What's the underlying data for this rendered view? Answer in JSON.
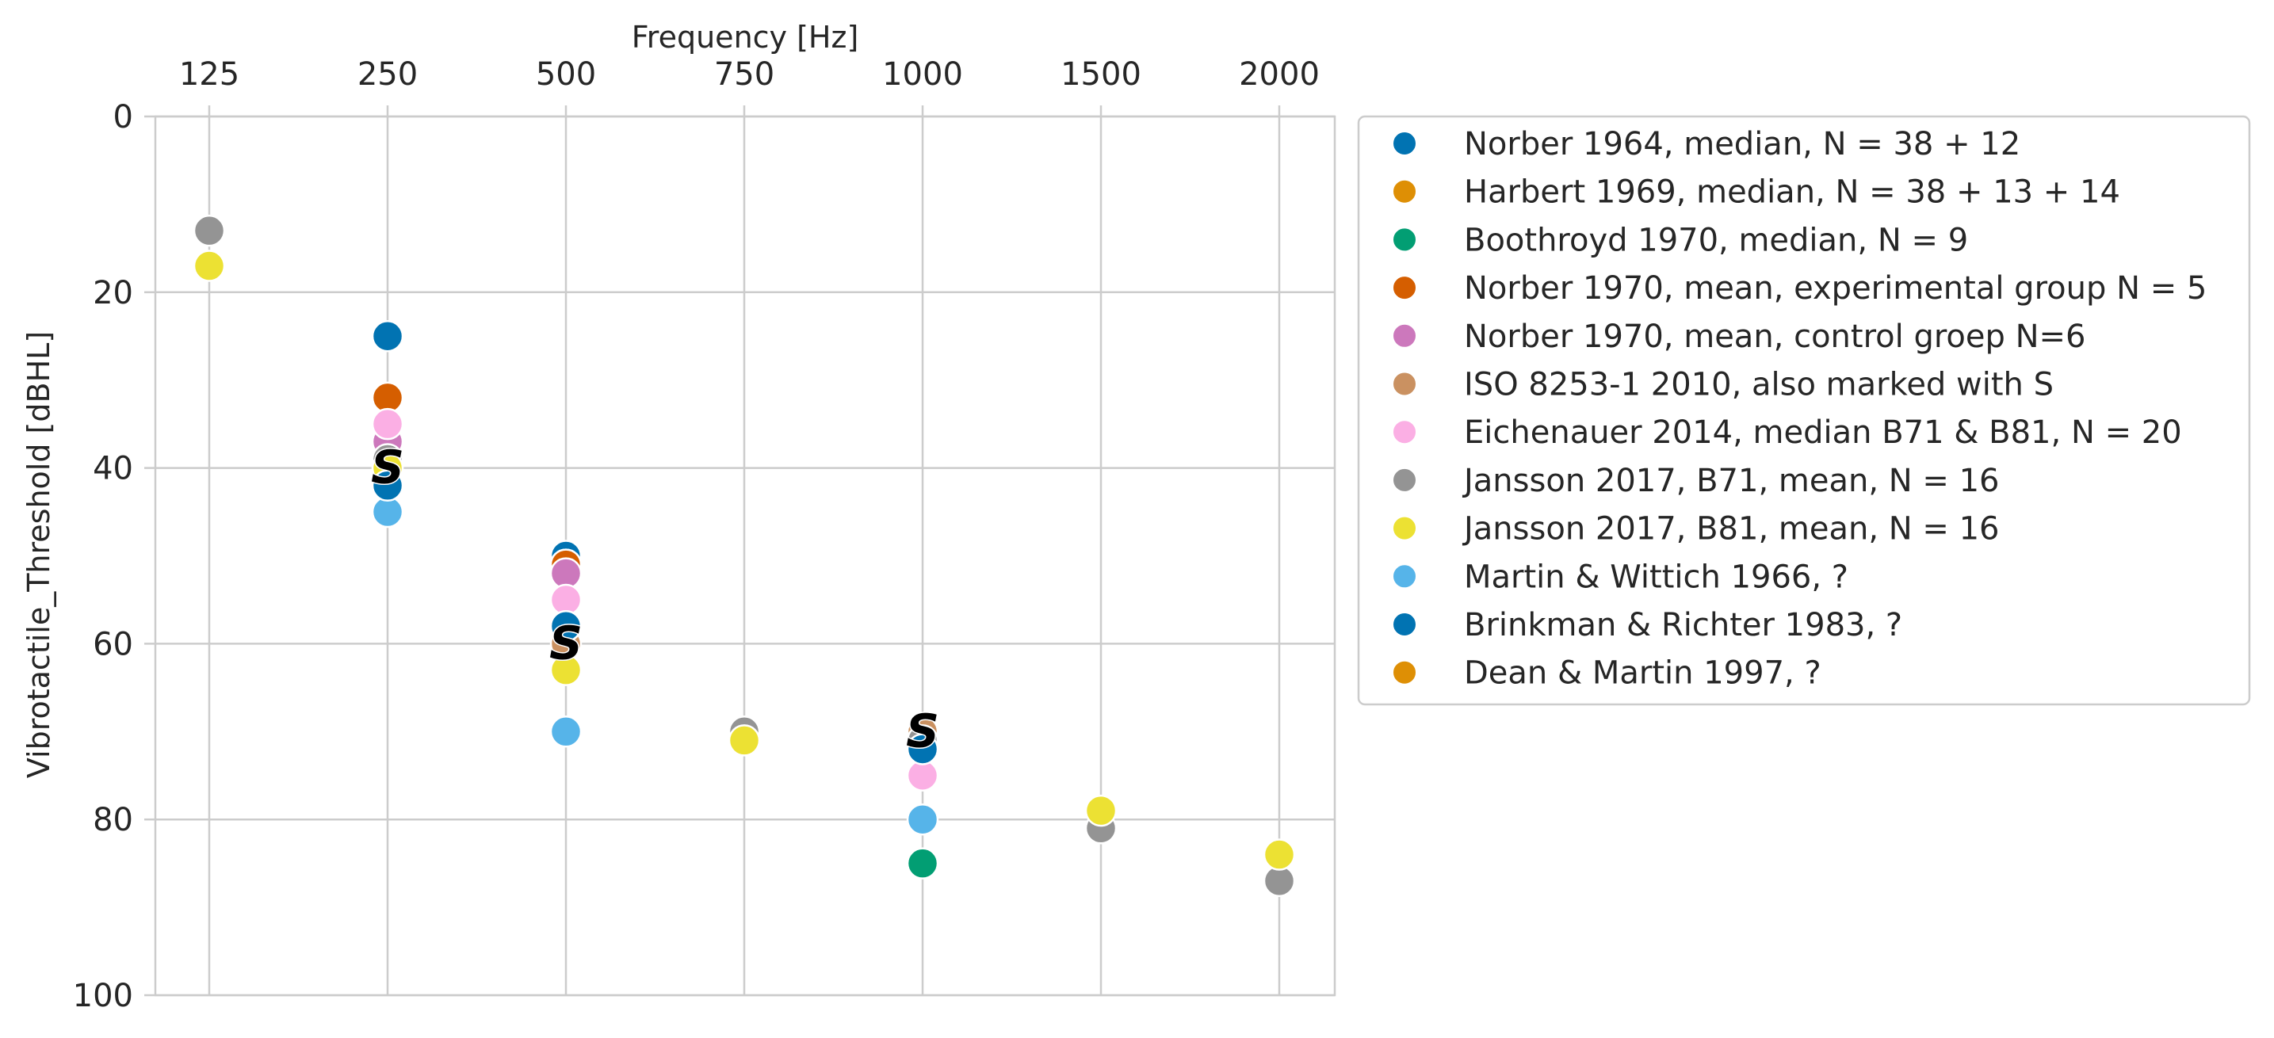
{
  "chart_data": {
    "type": "scatter",
    "xlabel": "Frequency [Hz]",
    "ylabel": "Vibrotactile_Threshold [dBHL]",
    "x_axis_position": "top",
    "x_scale": "categorical",
    "categories": [
      "125",
      "250",
      "500",
      "750",
      "1000",
      "1500",
      "2000"
    ],
    "y_inverted": true,
    "ylim": [
      0,
      100
    ],
    "yticks": [
      0,
      20,
      40,
      60,
      80,
      100
    ],
    "grid": true,
    "legend_position": "outside-right",
    "series": [
      {
        "name": "Norber 1964, median, N = 38 + 12",
        "color": "#0173b2",
        "points": [
          {
            "x": "250",
            "y": 25
          },
          {
            "x": "500",
            "y": 50
          },
          {
            "x": "1000",
            "y": 72
          }
        ]
      },
      {
        "name": "Harbert 1969, median, N = 38 + 13 + 14",
        "color": "#de8f05",
        "points": [
          {
            "x": "250",
            "y": 39
          },
          {
            "x": "500",
            "y": 51
          }
        ]
      },
      {
        "name": "Boothroyd 1970, median, N = 9",
        "color": "#029e73",
        "points": [
          {
            "x": "1000",
            "y": 85
          }
        ]
      },
      {
        "name": "Norber 1970, mean, experimental group N = 5",
        "color": "#d55e00",
        "points": [
          {
            "x": "250",
            "y": 32
          },
          {
            "x": "500",
            "y": 51
          }
        ]
      },
      {
        "name": "Norber 1970, mean, control groep N=6",
        "color": "#cc78bc",
        "points": [
          {
            "x": "250",
            "y": 37
          },
          {
            "x": "500",
            "y": 52
          }
        ]
      },
      {
        "name": "ISO 8253-1 2010, also marked with S",
        "color": "#ca9161",
        "points": [
          {
            "x": "250",
            "y": 40
          },
          {
            "x": "500",
            "y": 60
          },
          {
            "x": "1000",
            "y": 70
          }
        ]
      },
      {
        "name": "Eichenauer 2014, median B71 & B81, N = 20",
        "color": "#fbafe4",
        "points": [
          {
            "x": "250",
            "y": 35
          },
          {
            "x": "500",
            "y": 55
          },
          {
            "x": "1000",
            "y": 75
          }
        ]
      },
      {
        "name": "Jansson 2017, B71, mean, N = 16",
        "color": "#949494",
        "points": [
          {
            "x": "125",
            "y": 13
          },
          {
            "x": "250",
            "y": 39
          },
          {
            "x": "500",
            "y": 58
          },
          {
            "x": "750",
            "y": 70
          },
          {
            "x": "1000",
            "y": 71
          },
          {
            "x": "1500",
            "y": 81
          },
          {
            "x": "2000",
            "y": 87
          }
        ]
      },
      {
        "name": "Jansson 2017, B81, mean, N = 16",
        "color": "#ece133",
        "points": [
          {
            "x": "125",
            "y": 17
          },
          {
            "x": "250",
            "y": 40
          },
          {
            "x": "500",
            "y": 63
          },
          {
            "x": "750",
            "y": 71
          },
          {
            "x": "1500",
            "y": 79
          },
          {
            "x": "2000",
            "y": 84
          }
        ]
      },
      {
        "name": "Martin & Wittich 1966, ?",
        "color": "#56b4e9",
        "points": [
          {
            "x": "250",
            "y": 45
          },
          {
            "x": "500",
            "y": 70
          },
          {
            "x": "1000",
            "y": 80
          }
        ]
      },
      {
        "name": "Brinkman & Richter 1983, ?",
        "color": "#0173b2",
        "points": [
          {
            "x": "250",
            "y": 42
          },
          {
            "x": "500",
            "y": 58
          },
          {
            "x": "1000",
            "y": 72
          }
        ]
      },
      {
        "name": "Dean & Martin 1997, ?",
        "color": "#de8f05",
        "points": []
      }
    ],
    "annotations": [
      {
        "text": "S",
        "x": "250",
        "y": 40
      },
      {
        "text": "S",
        "x": "500",
        "y": 60
      },
      {
        "text": "S",
        "x": "1000",
        "y": 70
      }
    ]
  }
}
